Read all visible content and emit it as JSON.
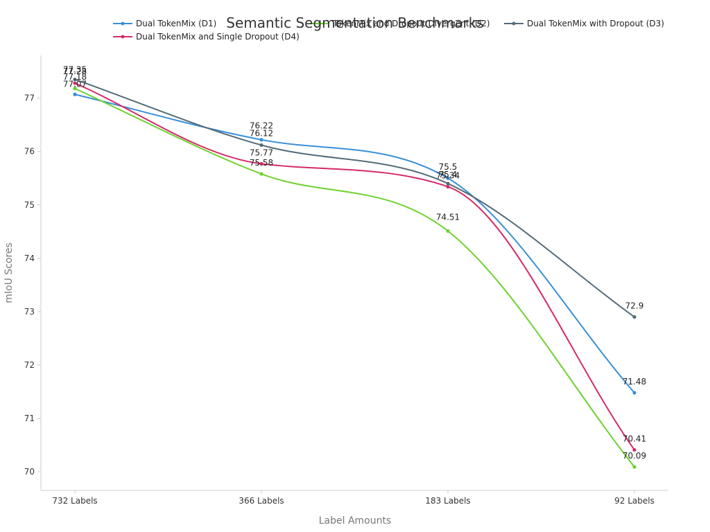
{
  "chart_data": {
    "type": "line",
    "title": "Semantic Segmentation Benchmarks",
    "xlabel": "Label Amounts",
    "ylabel": "mIoU Scores",
    "categories": [
      "732 Labels",
      "366 Labels",
      "183 Labels",
      "92 Labels"
    ],
    "ylim": [
      69.65,
      77.8
    ],
    "yticks": [
      70,
      71,
      72,
      73,
      74,
      75,
      76,
      77
    ],
    "grid": false,
    "legend_position": "top",
    "series": [
      {
        "name": "Dual TokenMix (D1)",
        "color": "#3a8fd8",
        "values": [
          77.07,
          76.22,
          75.5,
          71.48
        ]
      },
      {
        "name": "TokenMix and Dropout Divergent (D2)",
        "color": "#6ed12e",
        "values": [
          77.18,
          75.58,
          74.51,
          70.09
        ]
      },
      {
        "name": "Dual TokenMix with Dropout (D3)",
        "color": "#546b78",
        "values": [
          77.35,
          76.12,
          75.4,
          72.9
        ]
      },
      {
        "name": "Dual TokenMix and Single Dropout (D4)",
        "color": "#d42a67",
        "values": [
          77.28,
          75.77,
          75.34,
          70.41
        ]
      }
    ]
  }
}
